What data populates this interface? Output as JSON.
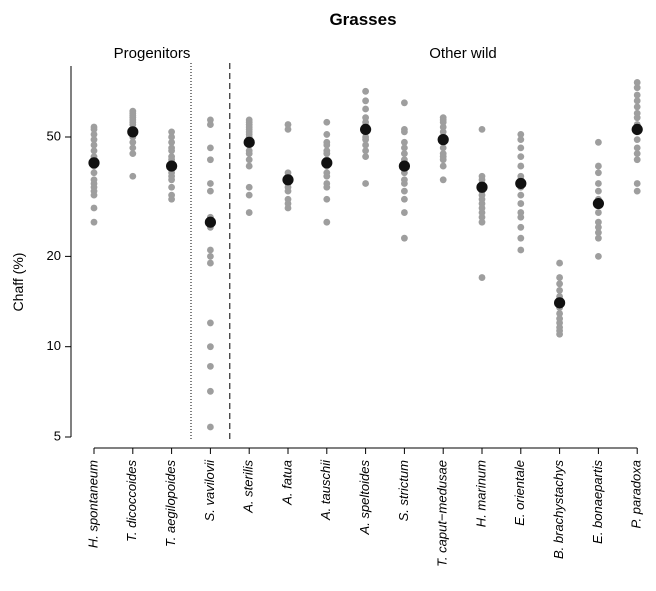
{
  "chart_data": {
    "type": "scatter",
    "title": "Grasses",
    "ylabel": "Chaff (%)",
    "xlabel": "",
    "y_scale": "log",
    "ylim": [
      5,
      80
    ],
    "yticks": [
      5,
      10,
      20,
      50
    ],
    "groups": [
      {
        "label": "Progenitors",
        "categories": [
          0,
          1,
          2,
          3
        ]
      },
      {
        "label": "Other wild",
        "categories": [
          4,
          5,
          6,
          7,
          8,
          9,
          10,
          11,
          12,
          13,
          14
        ]
      }
    ],
    "separators": [
      {
        "after_category": 2,
        "style": "dotted"
      },
      {
        "after_category": 3,
        "style": "dashed"
      }
    ],
    "colors": {
      "points": "#9e9e9e",
      "means": "#111111"
    },
    "categories": [
      "H. spontaneum",
      "T. dicoccoides",
      "T. aegilopoides",
      "S. vavilovii",
      "A. sterilis",
      "A. fatua",
      "A. tauschii",
      "A. speltoides",
      "S. strictum",
      "T. caput−medusae",
      "H. marinum",
      "E. orientale",
      "B. brachystachys",
      "E. bonaepartis",
      "P. paradoxa"
    ],
    "means": [
      41,
      52,
      40,
      26,
      48,
      36,
      41,
      53,
      40,
      49,
      34,
      35,
      14,
      30,
      53
    ],
    "points": [
      [
        26,
        29,
        32,
        33,
        34,
        35,
        36,
        38,
        40,
        42,
        43,
        45,
        47,
        49,
        51,
        53,
        54
      ],
      [
        37,
        44,
        46,
        48,
        50,
        51,
        52,
        53,
        55,
        56,
        57,
        58,
        59,
        60,
        61
      ],
      [
        31,
        32,
        34,
        36,
        37,
        38,
        39,
        40,
        42,
        43,
        45,
        46,
        48,
        50,
        52
      ],
      [
        5.4,
        7.1,
        8.6,
        10,
        12,
        19,
        20,
        21,
        25,
        27,
        33,
        35,
        42,
        46,
        55,
        57
      ],
      [
        28,
        32,
        34,
        40,
        42,
        44,
        45,
        47,
        48,
        49,
        50,
        51,
        52,
        53,
        54,
        55,
        56,
        57
      ],
      [
        29,
        30,
        31,
        33,
        34,
        35,
        36,
        37,
        38,
        53,
        55
      ],
      [
        26,
        31,
        34,
        35,
        37,
        38,
        40,
        42,
        44,
        45,
        47,
        48,
        51,
        56
      ],
      [
        35,
        43,
        45,
        47,
        49,
        50,
        52,
        54,
        56,
        58,
        62,
        66,
        71
      ],
      [
        23,
        28,
        31,
        33,
        35,
        36,
        38,
        40,
        42,
        44,
        46,
        48,
        52,
        53,
        65
      ],
      [
        36,
        40,
        42,
        43,
        44,
        46,
        48,
        50,
        52,
        54,
        56,
        57,
        58
      ],
      [
        17,
        26,
        27,
        28,
        29,
        30,
        31,
        32,
        33,
        35,
        36,
        37,
        53
      ],
      [
        21,
        23,
        25,
        27,
        28,
        30,
        32,
        34,
        36,
        37,
        40,
        43,
        46,
        49,
        51
      ],
      [
        11,
        11.3,
        11.6,
        12,
        12.4,
        12.9,
        13.5,
        14,
        14.7,
        15.4,
        16.2,
        17,
        19
      ],
      [
        20,
        23,
        24,
        25,
        26,
        28,
        31,
        33,
        35,
        38,
        40,
        48
      ],
      [
        33,
        35,
        42,
        44,
        46,
        49,
        52,
        55,
        58,
        60,
        63,
        66,
        69,
        73,
        76
      ]
    ]
  }
}
